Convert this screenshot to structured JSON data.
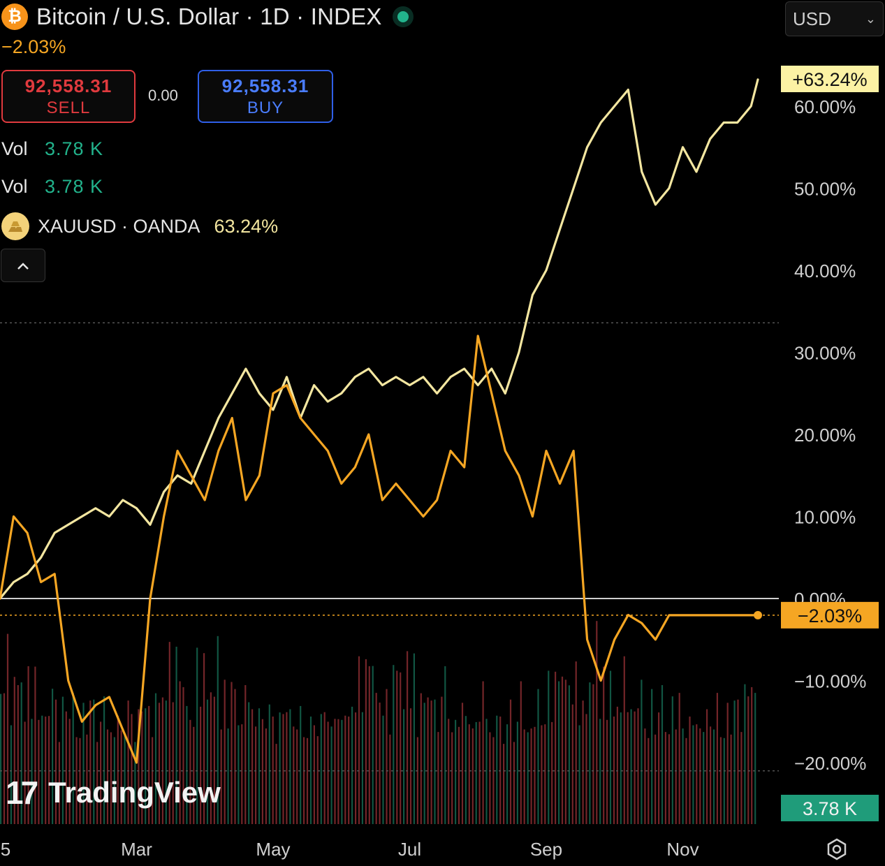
{
  "header": {
    "symbol_title": "Bitcoin / U.S. Dollar · 1D · INDEX",
    "change": "−2.03%",
    "btc_icon": "bitcoin-icon",
    "sell": {
      "price": "92,558.31",
      "label": "SELL"
    },
    "spread": "0.00",
    "buy": {
      "price": "92,558.31",
      "label": "BUY"
    },
    "vol_rows": [
      {
        "key": "Vol",
        "value": "3.78 K"
      },
      {
        "key": "Vol",
        "value": "3.78 K"
      }
    ],
    "compare": {
      "name": "XAUUSD · OANDA",
      "pct": "63.24%",
      "icon": "gold-bars-icon"
    },
    "collapse_icon": "chevron-up-icon"
  },
  "currency_select": {
    "value": "USD"
  },
  "watermark": {
    "logo": "17",
    "name": "TradingView"
  },
  "settings_icon": "settings-gear-icon",
  "colors": {
    "btc_line": "#f5a623",
    "gold_line": "#f3e6a0",
    "sell": "#e03a3e",
    "buy": "#4a7dff",
    "vol_up": "#1f9c7a",
    "vol_down": "#d2434b",
    "label_gold_bg": "#fcf2a4",
    "label_btc_bg": "#f5a623",
    "label_vol_bg": "#1f9c7a"
  },
  "chart_data": {
    "type": "line",
    "y_unit": "%",
    "ylim": [
      -20,
      65
    ],
    "y_ticks": [
      "60.00%",
      "50.00%",
      "40.00%",
      "30.00%",
      "20.00%",
      "10.00%",
      "0.00%",
      "−10.00%",
      "−20.00%"
    ],
    "y_tick_values": [
      60,
      50,
      40,
      30,
      20,
      10,
      0,
      -10,
      -20
    ],
    "x_tick_labels": [
      "5",
      "Mar",
      "May",
      "Jul",
      "Sep",
      "Nov"
    ],
    "x_tick_values": [
      0,
      2,
      4,
      6,
      8,
      10
    ],
    "x_range": [
      0,
      11.2
    ],
    "grid": false,
    "zero_line": 0,
    "series": [
      {
        "name": "XAUUSD · OANDA",
        "last_label": "+63.24%",
        "x": [
          0,
          0.2,
          0.4,
          0.6,
          0.8,
          1.0,
          1.2,
          1.4,
          1.6,
          1.8,
          2.0,
          2.2,
          2.4,
          2.6,
          2.8,
          3.0,
          3.2,
          3.4,
          3.6,
          3.8,
          4.0,
          4.2,
          4.4,
          4.6,
          4.8,
          5.0,
          5.2,
          5.4,
          5.6,
          5.8,
          6.0,
          6.2,
          6.4,
          6.6,
          6.8,
          7.0,
          7.2,
          7.4,
          7.6,
          7.8,
          8.0,
          8.2,
          8.4,
          8.6,
          8.8,
          9.0,
          9.2,
          9.4,
          9.6,
          9.8,
          10.0,
          10.2,
          10.4,
          10.6,
          10.8,
          11.0,
          11.1
        ],
        "values": [
          0,
          2,
          3,
          5,
          8,
          9,
          10,
          11,
          10,
          12,
          11,
          9,
          13,
          15,
          14,
          18,
          22,
          25,
          28,
          25,
          23,
          27,
          22,
          26,
          24,
          25,
          27,
          28,
          26,
          27,
          26,
          27,
          25,
          27,
          28,
          26,
          28,
          25,
          30,
          37,
          40,
          45,
          50,
          55,
          58,
          60,
          62,
          52,
          48,
          50,
          55,
          52,
          56,
          58,
          58,
          60,
          63.24
        ]
      },
      {
        "name": "Bitcoin / U.S. Dollar",
        "last_label": "−2.03%",
        "x": [
          0,
          0.2,
          0.4,
          0.6,
          0.8,
          1.0,
          1.2,
          1.4,
          1.6,
          1.8,
          2.0,
          2.2,
          2.4,
          2.6,
          2.8,
          3.0,
          3.2,
          3.4,
          3.6,
          3.8,
          4.0,
          4.2,
          4.4,
          4.6,
          4.8,
          5.0,
          5.2,
          5.4,
          5.6,
          5.8,
          6.0,
          6.2,
          6.4,
          6.6,
          6.8,
          7.0,
          7.2,
          7.4,
          7.6,
          7.8,
          8.0,
          8.2,
          8.4,
          8.6,
          8.8,
          9.0,
          9.2,
          9.4,
          9.6,
          9.8,
          10.0,
          10.2,
          10.4,
          10.6,
          10.8,
          11.0,
          11.1
        ],
        "values": [
          0,
          10,
          8,
          2,
          3,
          -10,
          -15,
          -13,
          -12,
          -16,
          -20,
          0,
          10,
          18,
          15,
          12,
          18,
          22,
          12,
          15,
          25,
          26,
          22,
          20,
          18,
          14,
          16,
          20,
          12,
          14,
          12,
          10,
          12,
          18,
          16,
          32,
          25,
          18,
          15,
          10,
          18,
          14,
          18,
          -5,
          -10,
          -5,
          -2,
          -3,
          -5,
          -2.03,
          -2.03,
          -2.03,
          -2.03,
          -2.03,
          -2.03,
          -2.03,
          -2.03
        ]
      }
    ],
    "volume": {
      "last_label": "3.78 K",
      "bars": [
        0.9,
        0.7,
        1.0,
        0.5,
        0.8,
        0.6,
        0.9,
        0.4,
        0.7,
        0.5,
        0.8,
        0.6,
        0.5,
        0.4,
        0.6,
        0.7,
        0.5,
        0.3,
        0.6,
        0.4,
        0.5,
        0.6,
        0.4,
        0.3,
        0.5,
        0.4,
        0.6,
        0.5,
        0.3,
        0.4,
        0.5,
        0.4,
        0.3,
        0.4,
        0.5,
        0.3,
        0.4,
        0.6,
        0.4,
        0.3,
        0.5,
        0.4,
        0.6,
        0.5,
        0.4,
        0.7,
        0.5,
        0.8,
        0.6,
        0.9,
        0.7,
        1.0,
        0.6,
        0.8,
        0.5,
        0.6,
        0.4
      ]
    }
  }
}
